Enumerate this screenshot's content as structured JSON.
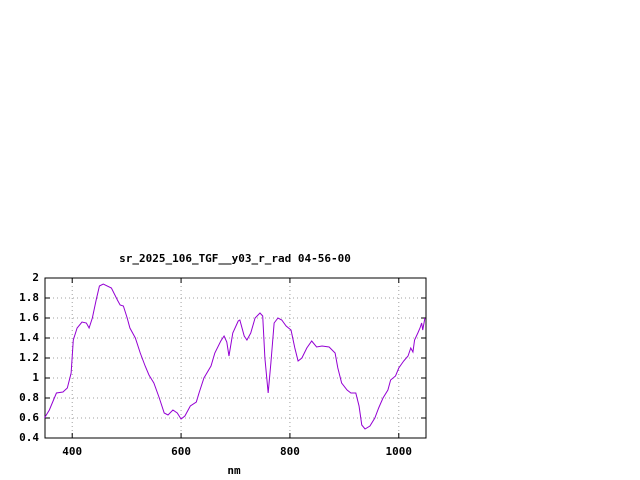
{
  "chart_data": {
    "type": "line",
    "title": "sr_2025_106_TGF__y03_r_rad 04-56-00",
    "x_label": "nm",
    "xlim": [
      350,
      1050
    ],
    "xticks": [
      400,
      600,
      800,
      1000
    ],
    "ylim": [
      0.4,
      2
    ],
    "yticks": [
      0.4,
      0.6,
      0.8,
      1,
      1.2,
      1.4,
      1.6,
      1.8,
      2
    ],
    "grid": true,
    "series": [
      {
        "color": "#9400d3",
        "x": [
          349,
          358,
          371,
          383,
          391,
          398,
          402,
          409,
          418,
          426,
          431,
          437,
          444,
          450,
          457,
          472,
          483,
          488,
          494,
          501,
          506,
          516,
          525,
          534,
          541,
          550,
          560,
          569,
          576,
          585,
          593,
          600,
          607,
          617,
          628,
          633,
          642,
          655,
          662,
          673,
          679,
          684,
          688,
          695,
          705,
          708,
          716,
          721,
          728,
          736,
          745,
          750,
          754,
          760,
          765,
          771,
          778,
          785,
          793,
          802,
          809,
          815,
          822,
          831,
          840,
          849,
          859,
          872,
          883,
          888,
          895,
          905,
          912,
          921,
          927,
          932,
          938,
          947,
          956,
          963,
          971,
          980,
          985,
          994,
          1000,
          1009,
          1017,
          1022,
          1026,
          1029,
          1035,
          1039,
          1042,
          1044,
          1048
        ],
        "values": [
          0.6,
          0.68,
          0.85,
          0.86,
          0.9,
          1.05,
          1.38,
          1.5,
          1.56,
          1.55,
          1.5,
          1.6,
          1.78,
          1.92,
          1.94,
          1.9,
          1.78,
          1.73,
          1.72,
          1.6,
          1.5,
          1.4,
          1.25,
          1.12,
          1.03,
          0.95,
          0.8,
          0.65,
          0.63,
          0.68,
          0.65,
          0.59,
          0.62,
          0.72,
          0.76,
          0.85,
          1.0,
          1.12,
          1.25,
          1.37,
          1.42,
          1.36,
          1.22,
          1.45,
          1.57,
          1.58,
          1.42,
          1.38,
          1.45,
          1.6,
          1.65,
          1.62,
          1.2,
          0.85,
          1.15,
          1.55,
          1.6,
          1.58,
          1.52,
          1.48,
          1.3,
          1.17,
          1.2,
          1.3,
          1.37,
          1.31,
          1.32,
          1.31,
          1.25,
          1.1,
          0.95,
          0.88,
          0.85,
          0.85,
          0.72,
          0.53,
          0.49,
          0.52,
          0.6,
          0.7,
          0.8,
          0.88,
          0.98,
          1.02,
          1.1,
          1.17,
          1.22,
          1.3,
          1.26,
          1.38,
          1.45,
          1.5,
          1.55,
          1.48,
          1.6
        ]
      }
    ]
  }
}
